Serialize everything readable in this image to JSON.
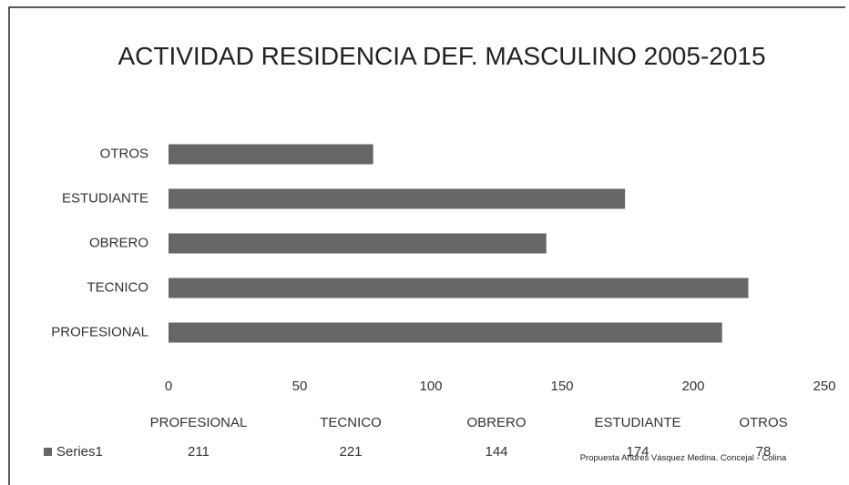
{
  "chart_data": {
    "type": "bar",
    "orientation": "horizontal",
    "title": "ACTIVIDAD RESIDENCIA DEF. MASCULINO 2005-2015",
    "categories": [
      "PROFESIONAL",
      "TECNICO",
      "OBRERO",
      "ESTUDIANTE",
      "OTROS"
    ],
    "series": [
      {
        "name": "Series1",
        "color": "#666666",
        "values": [
          211,
          221,
          144,
          174,
          78
        ]
      }
    ],
    "xlim": [
      0,
      250
    ],
    "xticks": [
      0,
      50,
      100,
      150,
      200,
      250
    ],
    "data_table": true,
    "footnote": "Propuesta Andrés Vásquez Medina. Concejal - Colina"
  }
}
